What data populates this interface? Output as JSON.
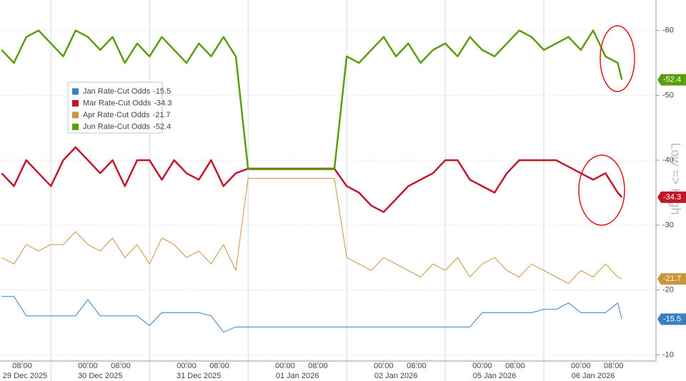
{
  "chart_data": {
    "type": "line",
    "annotation": "Low => High",
    "x": [
      3,
      6,
      9,
      12,
      15,
      18,
      21,
      24,
      27,
      30,
      33,
      36,
      39,
      42,
      45,
      48,
      51,
      54,
      57,
      60,
      63,
      66,
      69,
      72,
      75,
      78,
      81,
      84,
      87,
      90,
      93,
      96,
      99,
      102,
      105,
      108,
      111,
      114,
      117,
      120,
      123,
      126,
      129,
      132,
      135,
      138,
      141,
      144,
      147,
      150,
      153,
      154
    ],
    "series": [
      {
        "name": "Jan Rate-Cut Odds",
        "color": "#3a7fc1",
        "values": [
          -19,
          -19,
          -16,
          -16,
          -16,
          -16,
          -16,
          -18.5,
          -16,
          -16,
          -16,
          -16,
          -14.5,
          -16.5,
          -16.5,
          -16.5,
          -16.5,
          -16,
          -13.5,
          -14.3,
          -14.3,
          -14.3,
          -14.3,
          -14.3,
          -14.3,
          -14.3,
          -14.3,
          -14.3,
          -14.3,
          -14.3,
          -14.3,
          -14.3,
          -14.3,
          -14.3,
          -14.3,
          -14.3,
          -14.3,
          -14.3,
          -14.3,
          -16.5,
          -16.5,
          -16.5,
          -16.5,
          -16.5,
          -17,
          -17,
          -18,
          -16.5,
          -16.5,
          -16.5,
          -18,
          -15.5
        ]
      },
      {
        "name": "Mar Rate-Cut Odds",
        "color": "#c0172b",
        "values": [
          -38,
          -36,
          -40,
          -38,
          -36,
          -40,
          -42,
          -40,
          -38,
          -40,
          -36,
          -40,
          -40,
          -37,
          -40,
          -38,
          -37,
          -40,
          -36,
          -38,
          -38.7,
          -38.7,
          -38.7,
          -38.7,
          -38.7,
          -38.7,
          -38.7,
          -38.7,
          -36,
          -35,
          -33,
          -32,
          -34,
          -36,
          -37,
          -38,
          -40,
          -40,
          -37,
          -36,
          -35,
          -38,
          -40,
          -40,
          -40,
          -40,
          -39,
          -38,
          -37,
          -38,
          -35,
          -34.3
        ]
      },
      {
        "name": "Apr Rate-Cut Odds",
        "color": "#c8953a",
        "values": [
          -25,
          -24,
          -27,
          -26,
          -27,
          -27,
          -29,
          -27,
          -26,
          -28,
          -25,
          -27,
          -24,
          -28,
          -27,
          -25,
          -26,
          -24,
          -27,
          -23,
          -37.2,
          -37.2,
          -37.2,
          -37.2,
          -37.2,
          -37.2,
          -37.2,
          -37.2,
          -25,
          -24,
          -23,
          -25,
          -24,
          -23,
          -22,
          -24,
          -23,
          -25,
          -22,
          -24,
          -25,
          -23,
          -22,
          -24,
          -23,
          -22,
          -21,
          -23,
          -22,
          -24,
          -22,
          -21.7
        ]
      },
      {
        "name": "Jun Rate-Cut Odds",
        "color": "#5a9e0a",
        "values": [
          -57,
          -55,
          -59,
          -60,
          -58,
          -56,
          -60,
          -59,
          -57,
          -59,
          -55,
          -58,
          -56,
          -59,
          -57,
          -55,
          -58,
          -56,
          -59,
          -56,
          -38.6,
          -38.6,
          -38.6,
          -38.6,
          -38.6,
          -38.6,
          -38.6,
          -38.6,
          -56,
          -55,
          -57,
          -59,
          -56,
          -58,
          -55,
          -57,
          -58,
          -56,
          -59,
          -57,
          -56,
          -58,
          -60,
          -59,
          -57,
          -58,
          -59,
          -57,
          -60,
          -56,
          -55,
          -52.4
        ]
      }
    ],
    "xlim": [
      2.6,
      162.3
    ],
    "xticks": [
      {
        "value": 8,
        "label": "08:00"
      },
      {
        "value": 24,
        "label": "00:00"
      },
      {
        "value": 32,
        "label": "08:00"
      },
      {
        "value": 48,
        "label": "00:00"
      },
      {
        "value": 56,
        "label": "08:00"
      },
      {
        "value": 72,
        "label": "00:00"
      },
      {
        "value": 80,
        "label": "08:00"
      },
      {
        "value": 96,
        "label": "00:00"
      },
      {
        "value": 104,
        "label": "08:00"
      },
      {
        "value": 120,
        "label": "00:00"
      },
      {
        "value": 128,
        "label": "08:00"
      },
      {
        "value": 144,
        "label": "00:00"
      },
      {
        "value": 152,
        "label": "08:00"
      }
    ],
    "dates": [
      {
        "value": 0,
        "label": "29 Dec 2025"
      },
      {
        "value": 24,
        "label": "30 Dec 2025"
      },
      {
        "value": 48,
        "label": "31 Dec 2025"
      },
      {
        "value": 72,
        "label": "01 Jan 2026"
      },
      {
        "value": 96,
        "label": "02 Jan 2026"
      },
      {
        "value": 120,
        "label": "05 Jan 2026"
      },
      {
        "value": 144,
        "label": "06 Jan 2026"
      }
    ],
    "ylim": [
      -9.6,
      -64.7
    ],
    "yticks": [
      -60,
      -50,
      -40,
      -30,
      -20,
      -10
    ],
    "grid": true,
    "legend": "upper left"
  }
}
